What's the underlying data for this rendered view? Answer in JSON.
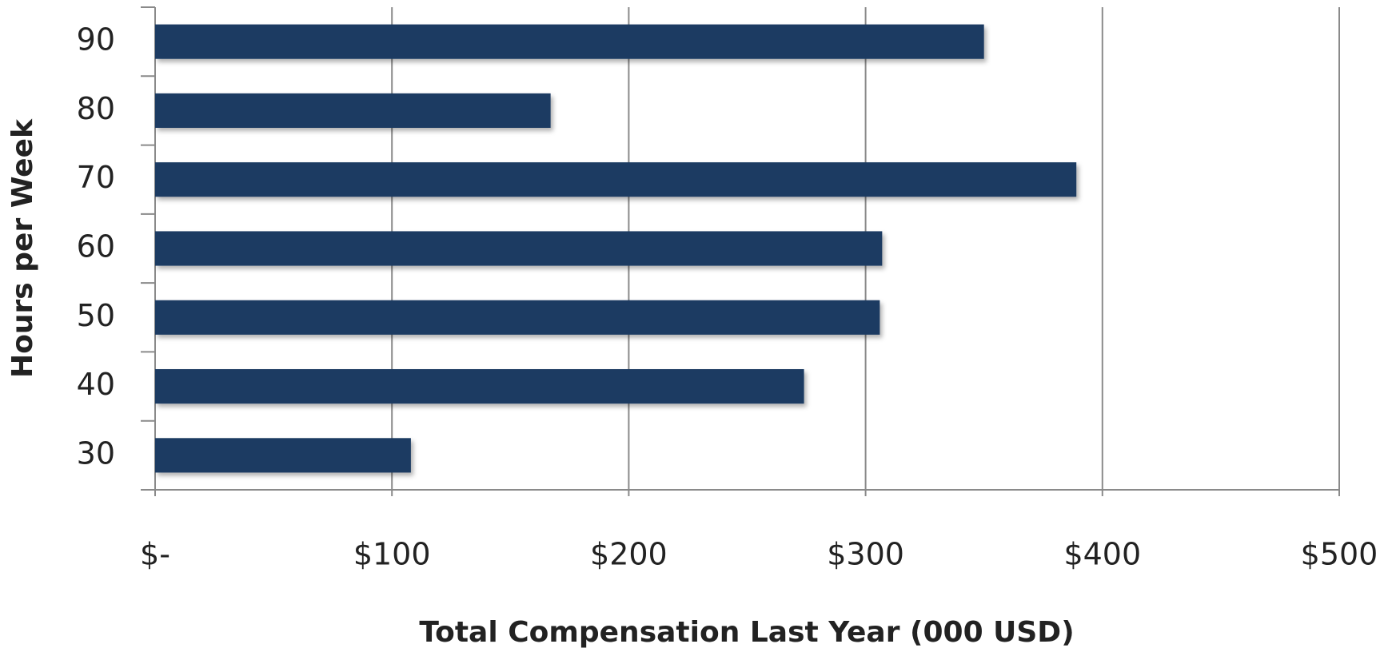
{
  "chart_data": {
    "type": "bar",
    "orientation": "horizontal",
    "xlabel": "Total Compensation Last Year (000 USD)",
    "ylabel": "Hours per Week",
    "categories": [
      "30",
      "40",
      "50",
      "60",
      "70",
      "80",
      "90"
    ],
    "values": [
      108,
      274,
      306,
      307,
      389,
      167,
      350
    ],
    "color": "#1b3a62",
    "xlim": [
      0,
      500
    ],
    "xticks": [
      {
        "value": 0,
        "label": "$-"
      },
      {
        "value": 100,
        "label": "$100"
      },
      {
        "value": 200,
        "label": "$200"
      },
      {
        "value": 300,
        "label": "$300"
      },
      {
        "value": 400,
        "label": "$400"
      },
      {
        "value": 500,
        "label": "$500"
      }
    ],
    "grid": true
  }
}
